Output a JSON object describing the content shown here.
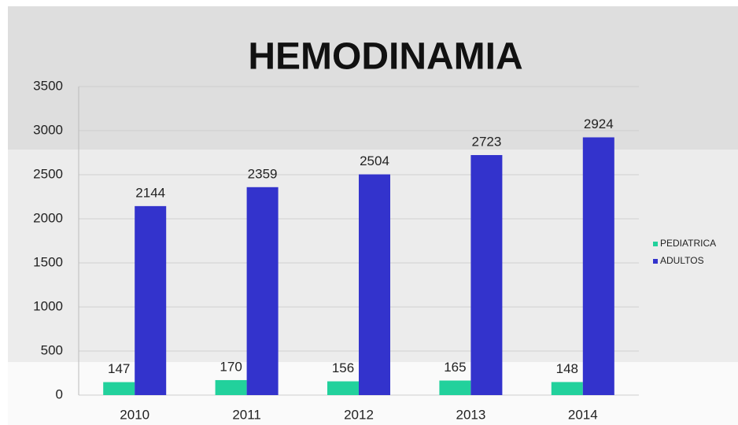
{
  "chart_data": {
    "type": "bar",
    "title": "HEMODINAMIA",
    "categories": [
      "2010",
      "2011",
      "2012",
      "2013",
      "2014"
    ],
    "series": [
      {
        "name": "PEDIATRICA",
        "color": "#22d19c",
        "values": [
          147,
          170,
          156,
          165,
          148
        ]
      },
      {
        "name": "ADULTOS",
        "color": "#3333cc",
        "values": [
          2144,
          2359,
          2504,
          2723,
          2924
        ]
      }
    ],
    "ylim": [
      0,
      3500
    ],
    "yticks": [
      0,
      500,
      1000,
      1500,
      2000,
      2500,
      3000,
      3500
    ],
    "grid": true,
    "legend": "right"
  }
}
